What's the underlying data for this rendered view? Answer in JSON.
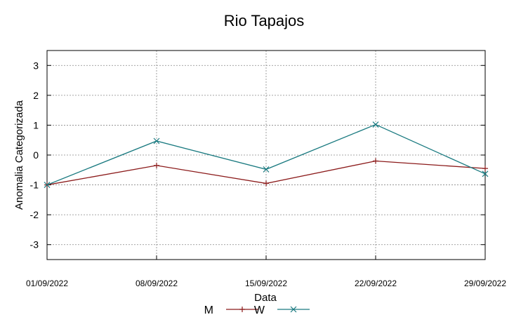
{
  "chart_data": {
    "type": "line",
    "title": "Rio Tapajos",
    "xlabel": "Data",
    "ylabel": "Anomalia Categorizada",
    "categories": [
      "01/09/2022",
      "08/09/2022",
      "15/09/2022",
      "22/09/2022",
      "29/09/2022"
    ],
    "yticks": [
      "3",
      "2",
      "1",
      "0",
      "-1",
      "-2",
      "-3"
    ],
    "ylim": [
      -3.5,
      3.5
    ],
    "grid": true,
    "legend_position": "bottom",
    "series": [
      {
        "name": "M",
        "marker": "+",
        "color": "#8b1a1a",
        "values": [
          -1.0,
          -0.35,
          -0.95,
          -0.2,
          -0.45
        ]
      },
      {
        "name": "W",
        "marker": "x",
        "color": "#1a7a80",
        "values": [
          -1.0,
          0.47,
          -0.48,
          1.02,
          -0.63
        ]
      }
    ]
  }
}
